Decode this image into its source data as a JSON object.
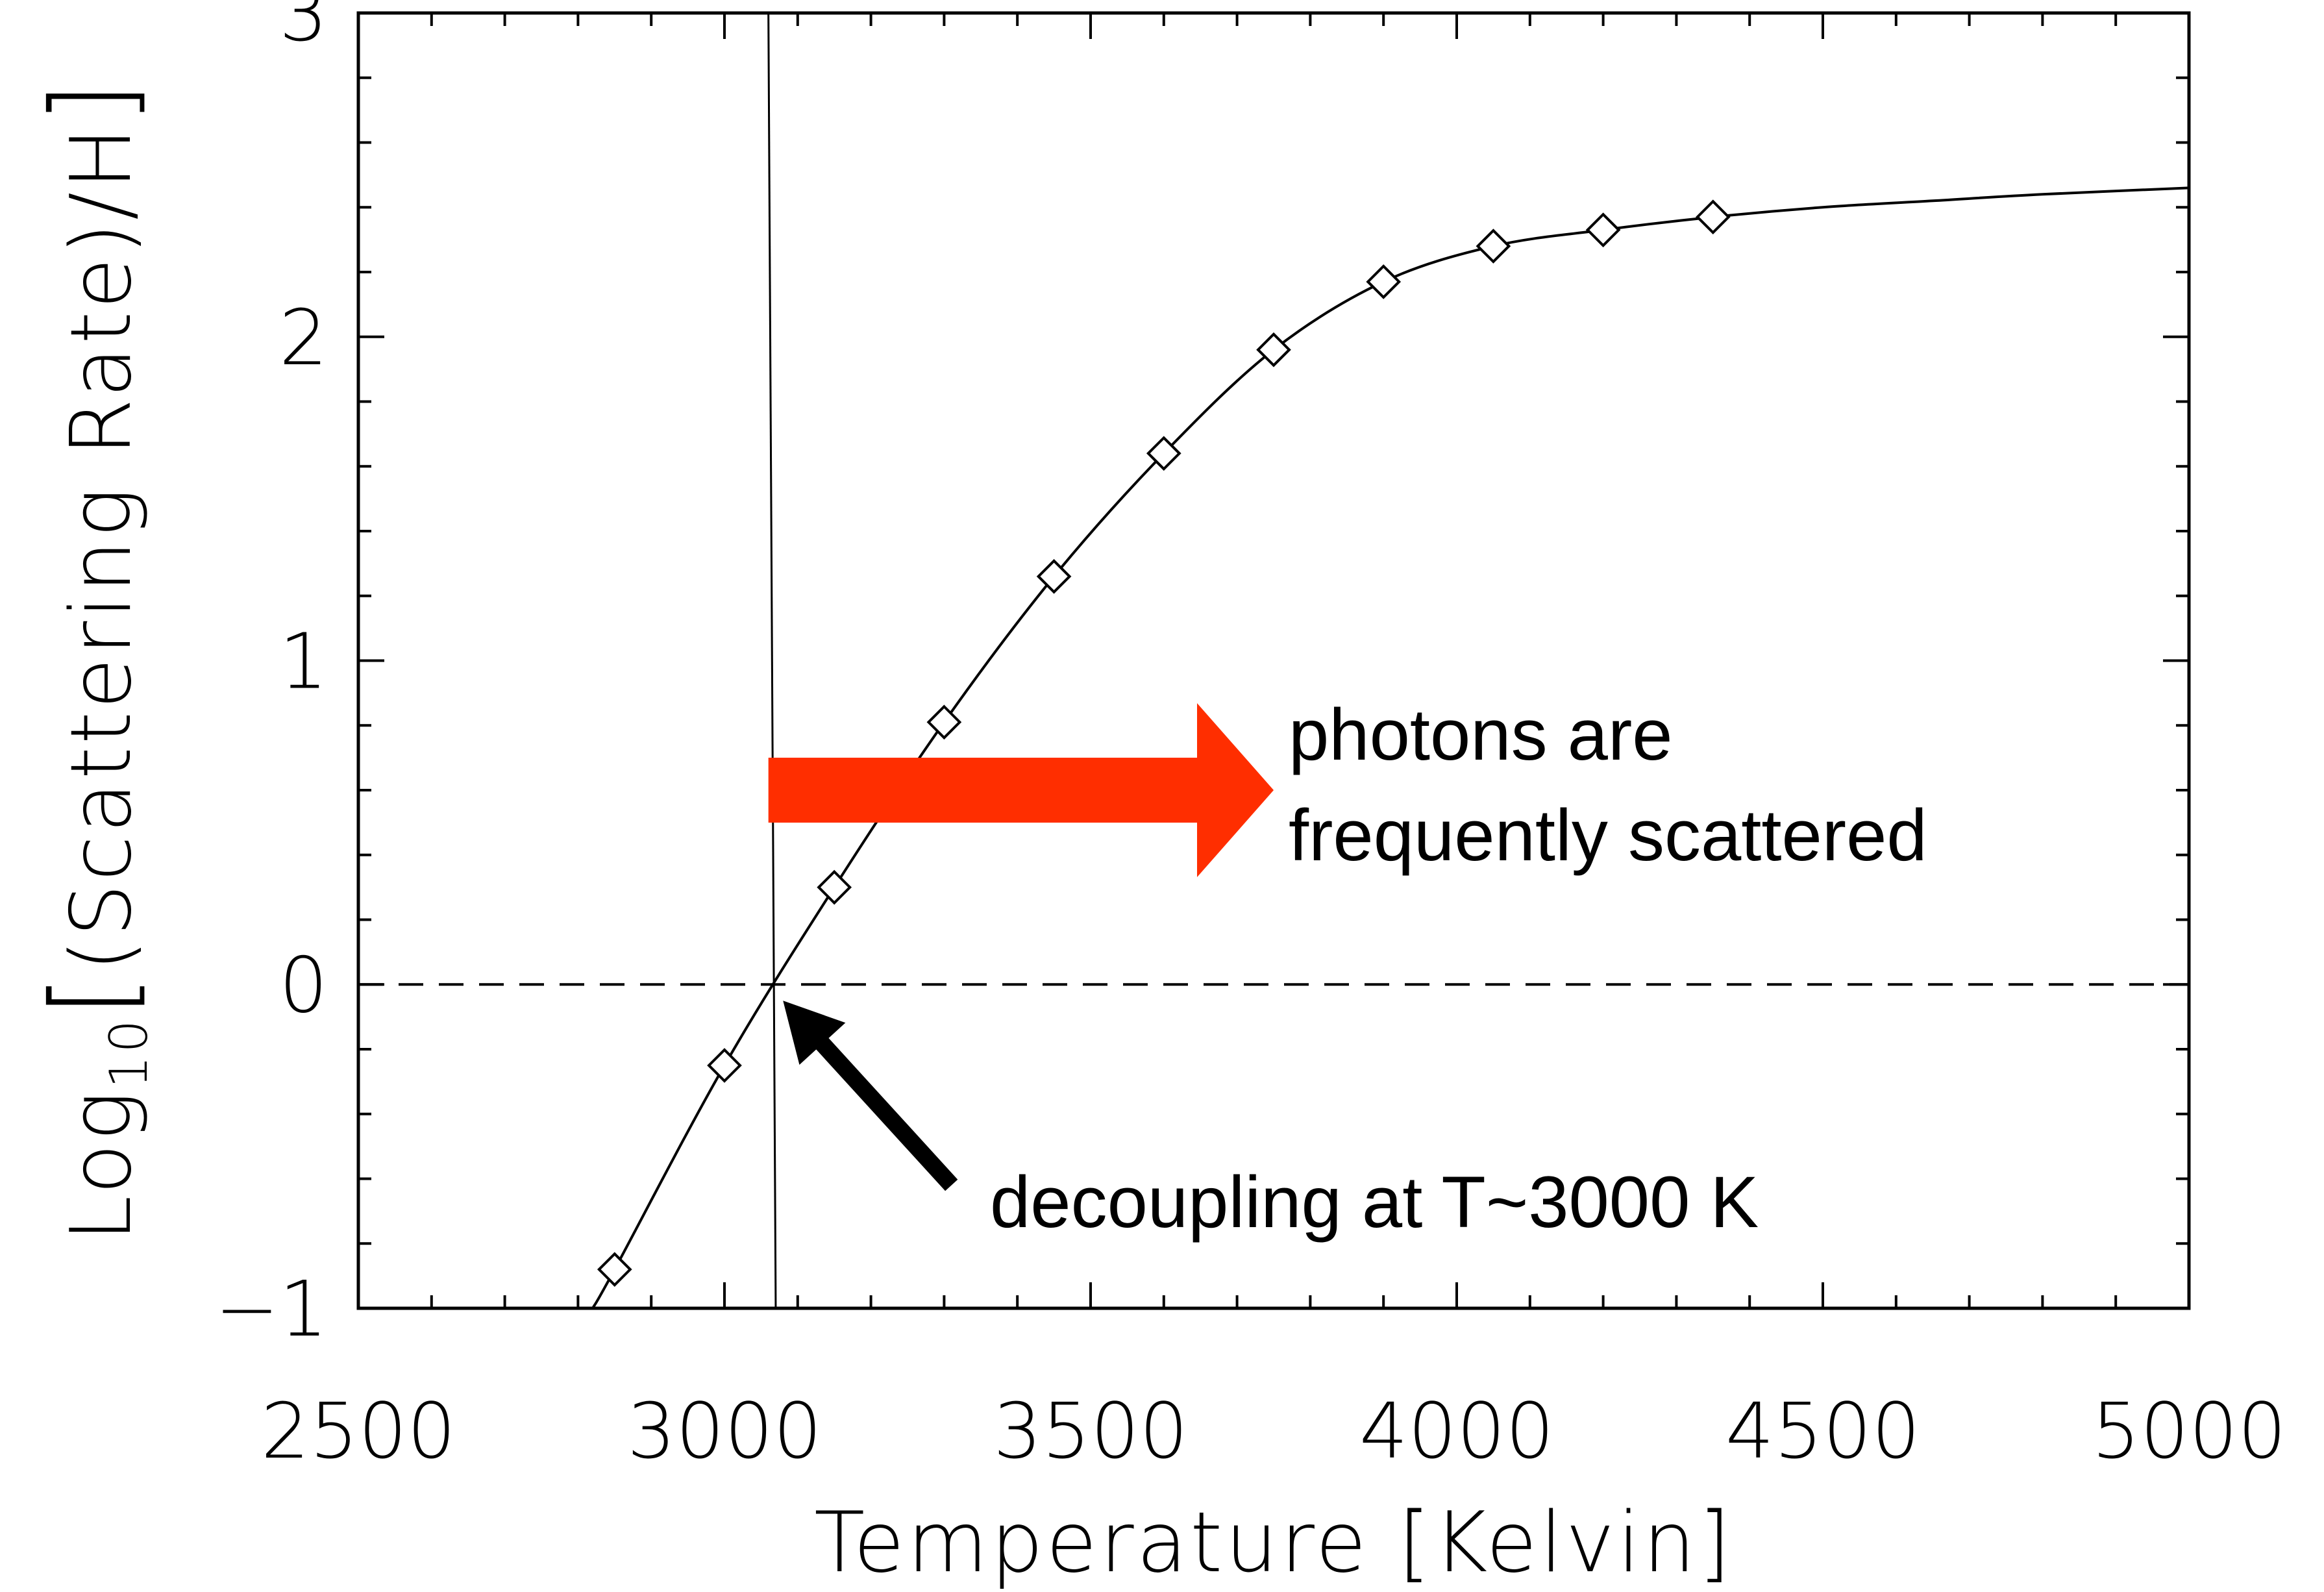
{
  "chart_data": {
    "type": "line",
    "xlabel": "Temperature [Kelvin]",
    "ylabel": {
      "prefix": "Log",
      "subscript": "10",
      "bracket_open": "[",
      "body": "(Scattering Rate)/H",
      "bracket_close": "]"
    },
    "xlim": [
      2500,
      5000
    ],
    "ylim": [
      -1,
      3
    ],
    "x_ticks": [
      2500,
      3000,
      3500,
      4000,
      4500,
      5000
    ],
    "x_tick_labels": [
      "2500",
      "3000",
      "3500",
      "4000",
      "4500",
      "5000"
    ],
    "y_ticks": [
      -1,
      0,
      1,
      2,
      3
    ],
    "y_tick_labels": [
      "−1",
      "0",
      "1",
      "2",
      "3"
    ],
    "grid": false,
    "series": [
      {
        "style": "solid",
        "x": [
          2820,
          2850,
          3000,
          3150,
          3300,
          3450,
          3600,
          3750,
          3900,
          4050,
          4200,
          4350,
          4500,
          4650,
          4800,
          5000
        ],
        "y": [
          -1.0,
          -0.88,
          -0.25,
          0.3,
          0.81,
          1.26,
          1.64,
          1.96,
          2.17,
          2.28,
          2.33,
          2.37,
          2.4,
          2.42,
          2.44,
          2.46
        ]
      },
      {
        "style": "markers",
        "marker": "diamond",
        "x": [
          2850,
          3000,
          3150,
          3300,
          3450,
          3600,
          3750,
          3900,
          4050,
          4200,
          4350
        ],
        "y": [
          -0.88,
          -0.25,
          0.3,
          0.81,
          1.26,
          1.64,
          1.96,
          2.17,
          2.28,
          2.33,
          2.37
        ]
      }
    ],
    "reference_lines": [
      {
        "orientation": "horizontal",
        "style": "dashed",
        "y": 0
      },
      {
        "orientation": "near-vertical",
        "style": "solid",
        "x_top": 3060,
        "x_bottom": 3070
      }
    ],
    "annotations": [
      {
        "text_lines": [
          "photons are",
          "frequently scattered"
        ],
        "arrow": "right",
        "arrow_color": "#ff2e00",
        "arrow_from": [
          3060,
          0.6
        ],
        "arrow_to": [
          3750,
          0.6
        ]
      },
      {
        "text_lines": [
          "decoupling at T~3000 K"
        ],
        "arrow": "up-left",
        "arrow_color": "#000000",
        "arrow_from": [
          3310,
          -0.62
        ],
        "arrow_to": [
          3080,
          -0.05
        ]
      }
    ]
  }
}
